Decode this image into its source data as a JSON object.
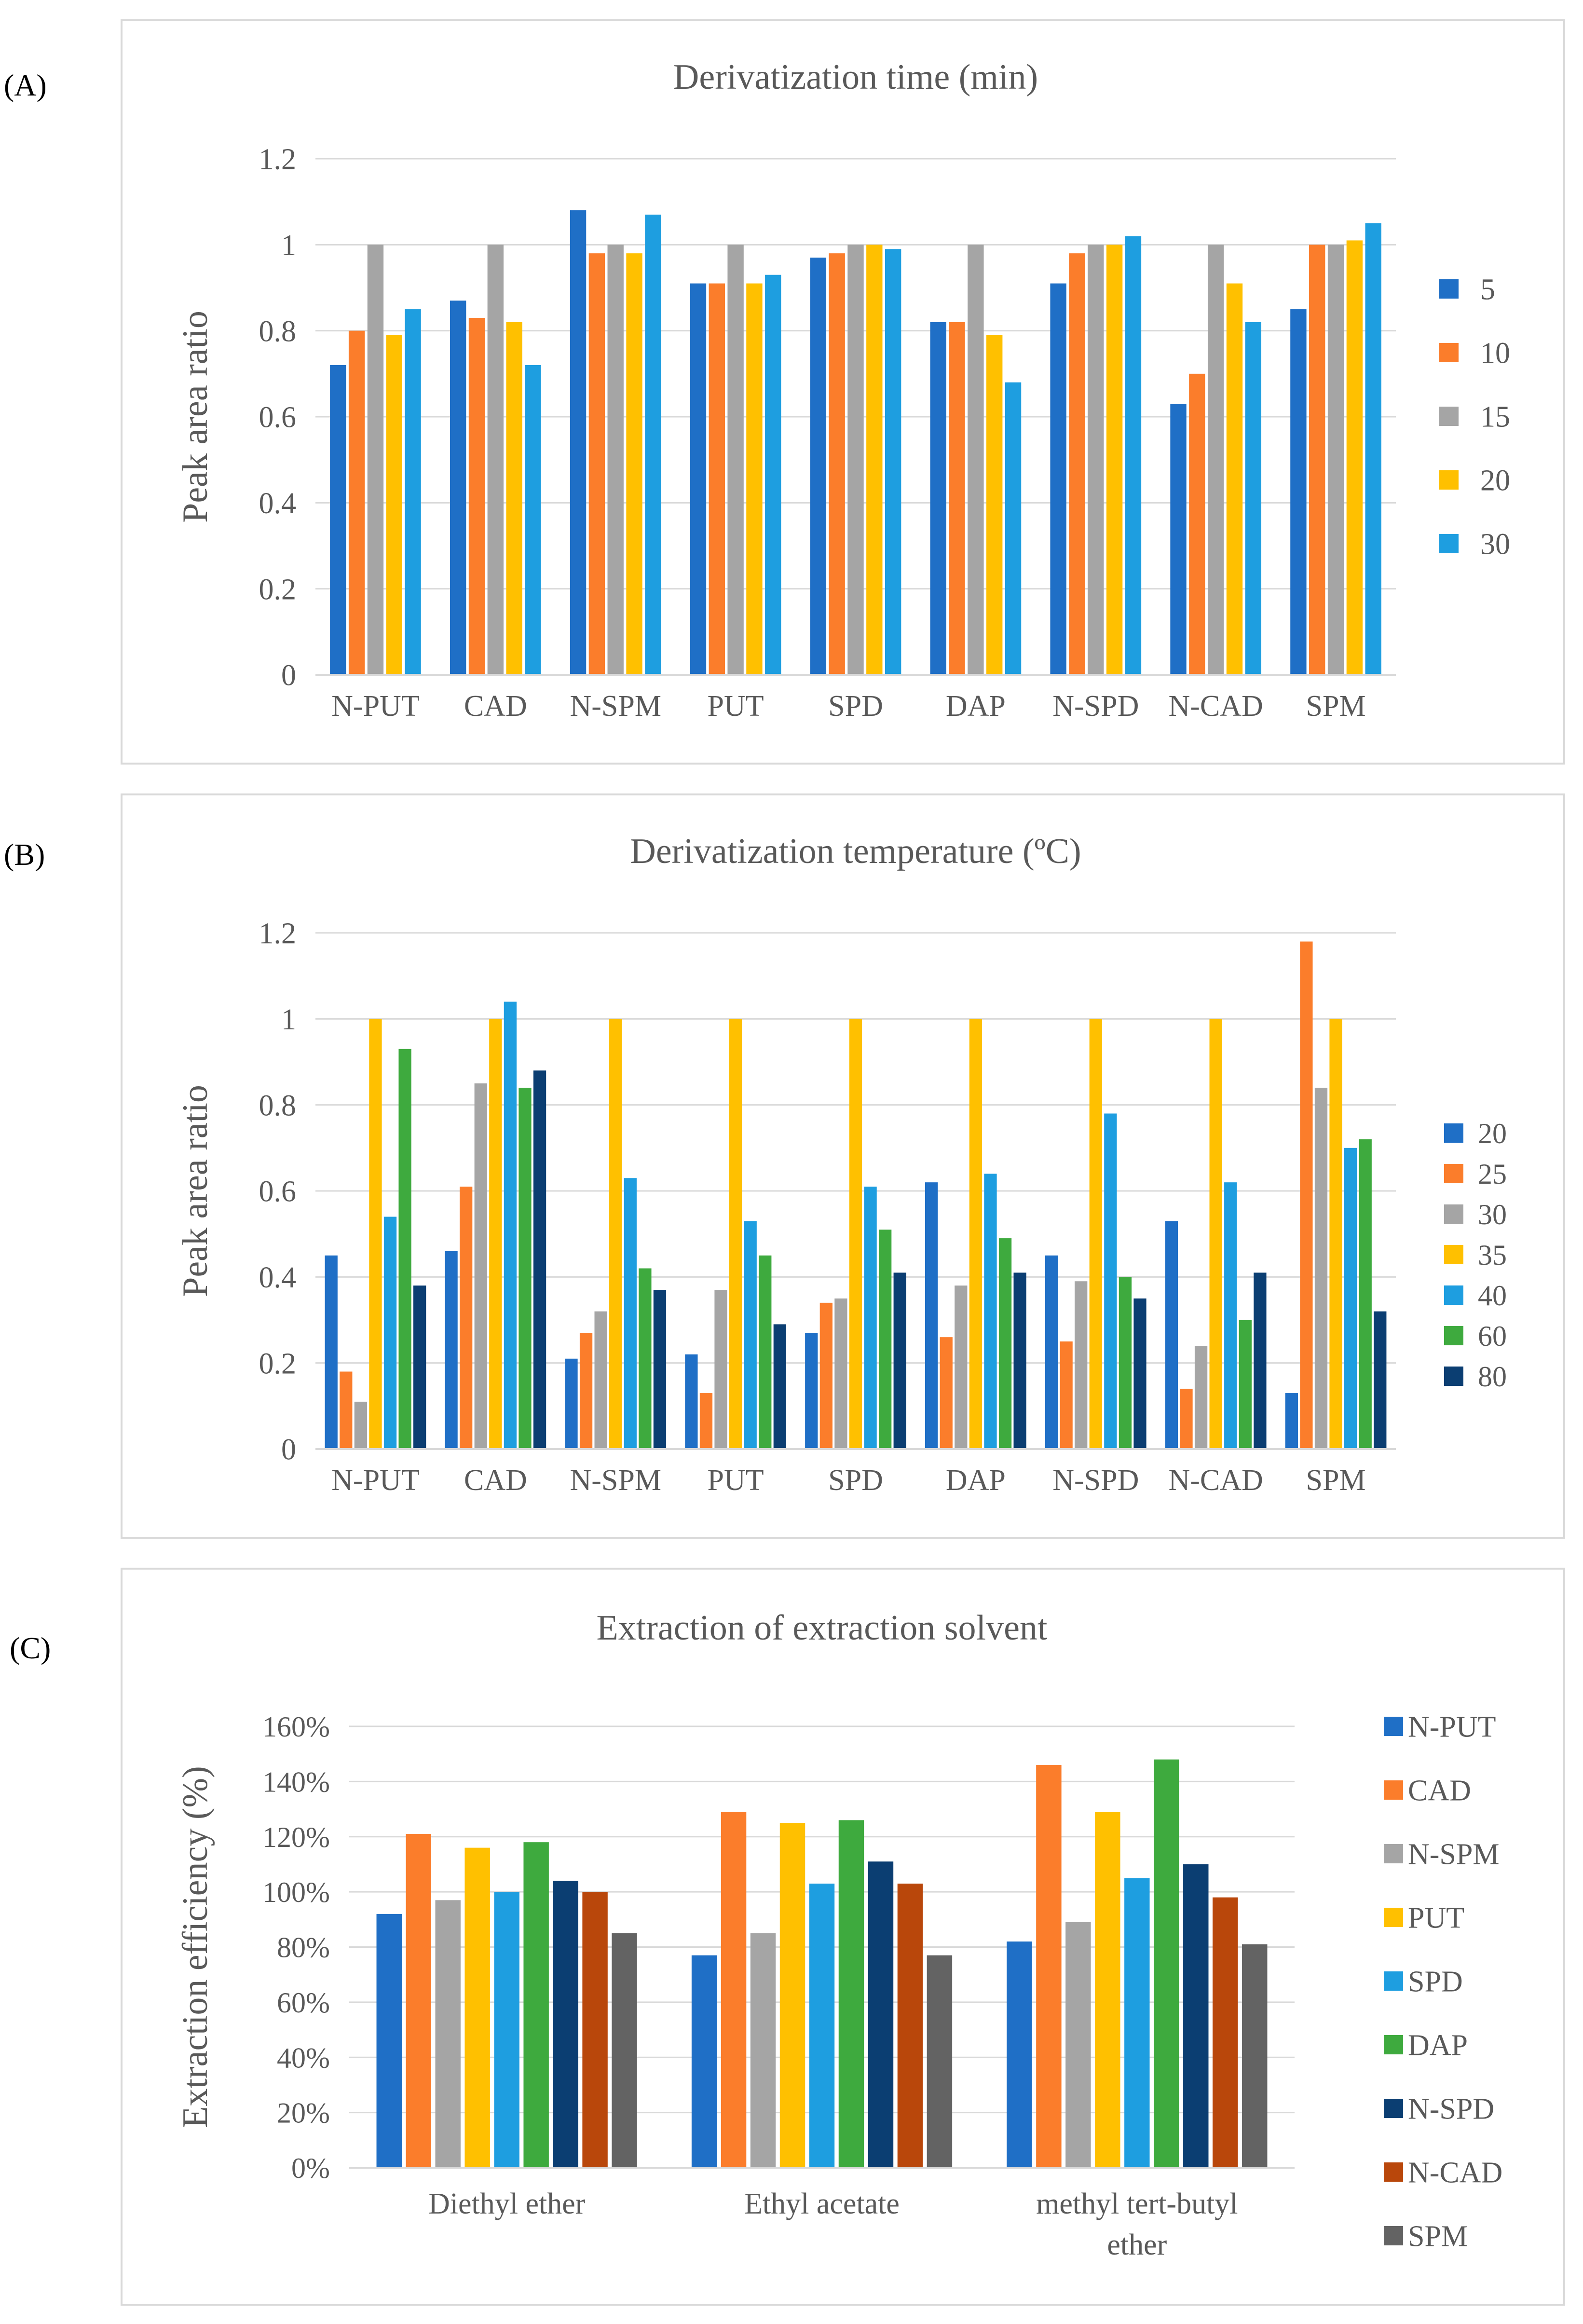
{
  "colors": {
    "blue": "#1f6fc6",
    "orange": "#fb7d2b",
    "gray": "#a5a5a5",
    "gold": "#ffc000",
    "lightblue": "#1e9ee0",
    "green": "#3eaa3e",
    "navy": "#0b3e72",
    "rust": "#b9470b",
    "darkgray": "#636363",
    "grid": "#d9d9d9",
    "text": "#595959"
  },
  "panels": {
    "a": {
      "label": "(A)"
    },
    "b": {
      "label": "(B)"
    },
    "c": {
      "label": "(C)"
    }
  },
  "chart_data": [
    {
      "type": "bar",
      "id": "a",
      "title": "Derivatization time (min)",
      "ylabel": "Peak area ratio",
      "xlabel": "",
      "ylim": [
        0,
        1.2
      ],
      "yticks": [
        "0",
        "0.2",
        "0.4",
        "0.6",
        "0.8",
        "1",
        "1.2"
      ],
      "ytick_values": [
        0,
        0.2,
        0.4,
        0.6,
        0.8,
        1.0,
        1.2
      ],
      "categories": [
        "N-PUT",
        "CAD",
        "N-SPM",
        "PUT",
        "SPD",
        "DAP",
        "N-SPD",
        "N-CAD",
        "SPM"
      ],
      "legend_position": "right",
      "series": [
        {
          "name": "5",
          "color": "#1f6fc6",
          "values": [
            0.72,
            0.87,
            1.08,
            0.91,
            0.97,
            0.82,
            0.91,
            0.63,
            0.85
          ]
        },
        {
          "name": "10",
          "color": "#fb7d2b",
          "values": [
            0.8,
            0.83,
            0.98,
            0.91,
            0.98,
            0.82,
            0.98,
            0.7,
            1.0
          ]
        },
        {
          "name": "15",
          "color": "#a5a5a5",
          "values": [
            1.0,
            1.0,
            1.0,
            1.0,
            1.0,
            1.0,
            1.0,
            1.0,
            1.0
          ]
        },
        {
          "name": "20",
          "color": "#ffc000",
          "values": [
            0.79,
            0.82,
            0.98,
            0.91,
            1.0,
            0.79,
            1.0,
            0.91,
            1.01
          ]
        },
        {
          "name": "30",
          "color": "#1e9ee0",
          "values": [
            0.85,
            0.72,
            1.07,
            0.93,
            0.99,
            0.68,
            1.02,
            0.82,
            1.05
          ]
        }
      ]
    },
    {
      "type": "bar",
      "id": "b",
      "title": "Derivatization temperature (ºC)",
      "ylabel": "Peak area ratio",
      "xlabel": "",
      "ylim": [
        0,
        1.2
      ],
      "yticks": [
        "0",
        "0.2",
        "0.4",
        "0.6",
        "0.8",
        "1",
        "1.2"
      ],
      "ytick_values": [
        0,
        0.2,
        0.4,
        0.6,
        0.8,
        1.0,
        1.2
      ],
      "categories": [
        "N-PUT",
        "CAD",
        "N-SPM",
        "PUT",
        "SPD",
        "DAP",
        "N-SPD",
        "N-CAD",
        "SPM"
      ],
      "legend_position": "right",
      "series": [
        {
          "name": "20",
          "color": "#1f6fc6",
          "values": [
            0.45,
            0.46,
            0.21,
            0.22,
            0.27,
            0.62,
            0.45,
            0.53,
            0.13
          ]
        },
        {
          "name": "25",
          "color": "#fb7d2b",
          "values": [
            0.18,
            0.61,
            0.27,
            0.13,
            0.34,
            0.26,
            0.25,
            0.14,
            1.18
          ]
        },
        {
          "name": "30",
          "color": "#a5a5a5",
          "values": [
            0.11,
            0.85,
            0.32,
            0.37,
            0.35,
            0.38,
            0.39,
            0.24,
            0.84
          ]
        },
        {
          "name": "35",
          "color": "#ffc000",
          "values": [
            1.0,
            1.0,
            1.0,
            1.0,
            1.0,
            1.0,
            1.0,
            1.0,
            1.0
          ]
        },
        {
          "name": "40",
          "color": "#1e9ee0",
          "values": [
            0.54,
            1.04,
            0.63,
            0.53,
            0.61,
            0.64,
            0.78,
            0.62,
            0.7
          ]
        },
        {
          "name": "60",
          "color": "#3eaa3e",
          "values": [
            0.93,
            0.84,
            0.42,
            0.45,
            0.51,
            0.49,
            0.4,
            0.3,
            0.72
          ]
        },
        {
          "name": "80",
          "color": "#0b3e72",
          "values": [
            0.38,
            0.88,
            0.37,
            0.29,
            0.41,
            0.41,
            0.35,
            0.41,
            0.32
          ]
        }
      ]
    },
    {
      "type": "bar",
      "id": "c",
      "title": "Extraction of extraction solvent",
      "ylabel": "Extraction efficiency (%)",
      "xlabel": "",
      "ylim": [
        0,
        160
      ],
      "yticks": [
        "0%",
        "20%",
        "40%",
        "60%",
        "80%",
        "100%",
        "120%",
        "140%",
        "160%"
      ],
      "ytick_values": [
        0,
        20,
        40,
        60,
        80,
        100,
        120,
        140,
        160
      ],
      "categories": [
        "Diethyl ether",
        "Ethyl acetate",
        "methyl tert-butyl ether"
      ],
      "category_lines": [
        [
          "Diethyl ether"
        ],
        [
          "Ethyl acetate"
        ],
        [
          "methyl tert-butyl",
          "ether"
        ]
      ],
      "legend_position": "right",
      "series": [
        {
          "name": "N-PUT",
          "color": "#1f6fc6",
          "values": [
            92,
            77,
            82
          ]
        },
        {
          "name": "CAD",
          "color": "#fb7d2b",
          "values": [
            121,
            129,
            146
          ]
        },
        {
          "name": "N-SPM",
          "color": "#a5a5a5",
          "values": [
            97,
            85,
            89
          ]
        },
        {
          "name": "PUT",
          "color": "#ffc000",
          "values": [
            116,
            125,
            129
          ]
        },
        {
          "name": "SPD",
          "color": "#1e9ee0",
          "values": [
            100,
            103,
            105
          ]
        },
        {
          "name": "DAP",
          "color": "#3eaa3e",
          "values": [
            118,
            126,
            148
          ]
        },
        {
          "name": "N-SPD",
          "color": "#0b3e72",
          "values": [
            104,
            111,
            110
          ]
        },
        {
          "name": "N-CAD",
          "color": "#b9470b",
          "values": [
            100,
            103,
            98
          ]
        },
        {
          "name": "SPM",
          "color": "#636363",
          "values": [
            85,
            77,
            81
          ]
        }
      ]
    }
  ]
}
